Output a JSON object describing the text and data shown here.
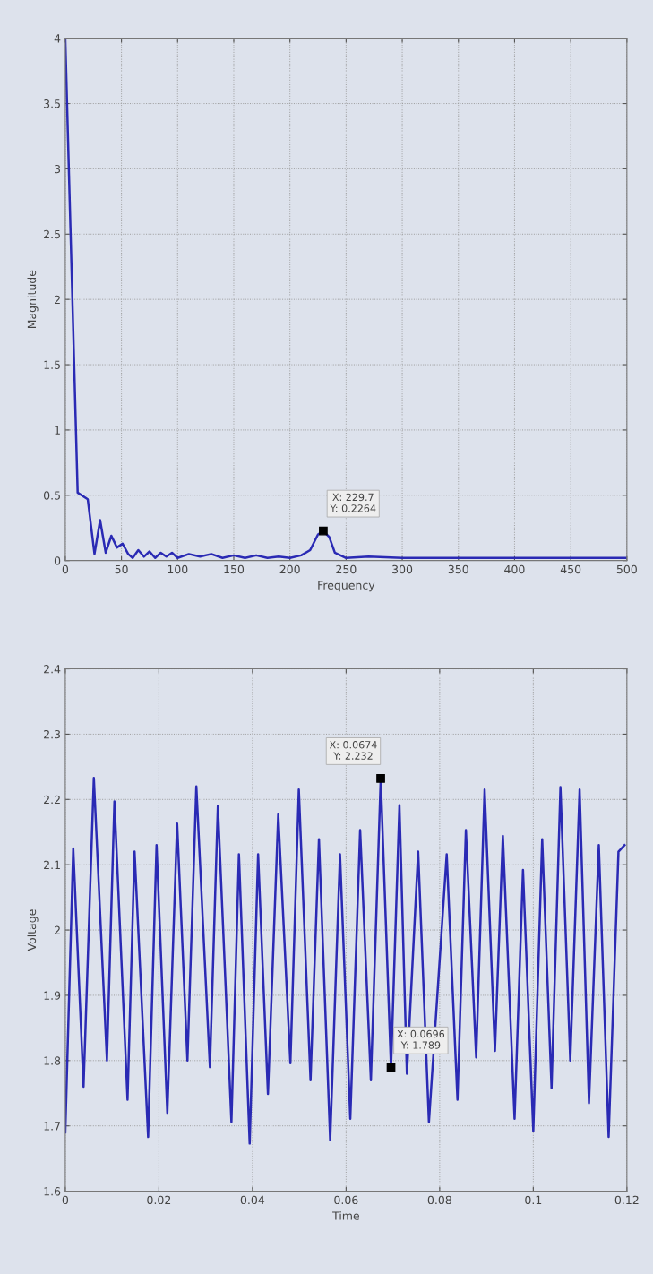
{
  "chart_data": [
    {
      "type": "line",
      "xlabel": "Frequency",
      "ylabel": "Magnitude",
      "color": "#2a2ab4",
      "grid": true,
      "xlim": [
        0,
        500
      ],
      "ylim": [
        0,
        4
      ],
      "xticks": [
        0,
        50,
        100,
        150,
        200,
        250,
        300,
        350,
        400,
        450,
        500
      ],
      "yticks": [
        0,
        0.5,
        1,
        1.5,
        2,
        2.5,
        3,
        3.5,
        4
      ],
      "x": [
        0,
        11,
        20,
        26,
        31,
        36,
        41,
        46,
        51,
        56,
        60,
        65,
        70,
        75,
        80,
        85,
        90,
        95,
        100,
        110,
        120,
        130,
        140,
        150,
        160,
        170,
        180,
        190,
        200,
        210,
        218,
        225,
        229.7,
        235,
        240,
        250,
        270,
        300,
        350,
        400,
        450,
        500
      ],
      "values": [
        4,
        0.52,
        0.47,
        0.05,
        0.31,
        0.06,
        0.19,
        0.1,
        0.13,
        0.05,
        0.02,
        0.08,
        0.03,
        0.07,
        0.02,
        0.06,
        0.03,
        0.06,
        0.02,
        0.05,
        0.03,
        0.05,
        0.02,
        0.04,
        0.02,
        0.04,
        0.02,
        0.03,
        0.02,
        0.04,
        0.08,
        0.2,
        0.2264,
        0.18,
        0.06,
        0.02,
        0.03,
        0.02,
        0.02,
        0.02,
        0.02,
        0.02
      ],
      "annotations": [
        {
          "text": "X: 229.7\nY: 0.2264",
          "x": 229.7,
          "y": 0.2264
        }
      ]
    },
    {
      "type": "line",
      "xlabel": "Time",
      "ylabel": "Voltage",
      "color": "#2a2ab4",
      "grid": true,
      "xlim": [
        0,
        0.12
      ],
      "ylim": [
        1.6,
        2.4
      ],
      "xticks": [
        0,
        0.02,
        0.04,
        0.06,
        0.08,
        0.1,
        0.12
      ],
      "yticks": [
        1.6,
        1.7,
        1.8,
        1.9,
        2,
        2.1,
        2.2,
        2.3,
        2.4
      ],
      "x": [
        0,
        0.0017,
        0.0039,
        0.0061,
        0.0089,
        0.0105,
        0.0133,
        0.0148,
        0.0177,
        0.0195,
        0.0218,
        0.0239,
        0.0261,
        0.028,
        0.0309,
        0.0326,
        0.0355,
        0.0371,
        0.0394,
        0.0412,
        0.0433,
        0.0455,
        0.0481,
        0.0499,
        0.0524,
        0.0542,
        0.0566,
        0.0587,
        0.0609,
        0.063,
        0.0653,
        0.0674,
        0.0696,
        0.0714,
        0.073,
        0.0754,
        0.0777,
        0.0815,
        0.0838,
        0.0856,
        0.0878,
        0.0896,
        0.0918,
        0.0935,
        0.096,
        0.0978,
        0.1,
        0.1019,
        0.1039,
        0.1058,
        0.1079,
        0.1099,
        0.1119,
        0.114,
        0.1161,
        0.1182,
        0.1195
      ],
      "values": [
        1.69,
        2.125,
        1.76,
        2.233,
        1.8,
        2.197,
        1.74,
        2.12,
        1.683,
        2.13,
        1.72,
        2.163,
        1.8,
        2.22,
        1.79,
        2.19,
        1.706,
        2.116,
        1.673,
        2.116,
        1.749,
        2.177,
        1.796,
        2.215,
        1.77,
        2.139,
        1.678,
        2.116,
        1.711,
        2.153,
        1.77,
        2.232,
        1.789,
        2.191,
        1.78,
        2.12,
        1.706,
        2.116,
        1.74,
        2.153,
        1.805,
        2.215,
        1.815,
        2.144,
        1.711,
        2.092,
        1.692,
        2.139,
        1.758,
        2.219,
        1.8,
        2.215,
        1.735,
        2.13,
        1.683,
        2.12,
        2.13
      ],
      "annotations": [
        {
          "text": "X: 0.0674\nY: 2.232",
          "x": 0.0674,
          "y": 2.232
        },
        {
          "text": "X: 0.0696\nY: 1.789",
          "x": 0.0696,
          "y": 1.789
        }
      ]
    }
  ]
}
